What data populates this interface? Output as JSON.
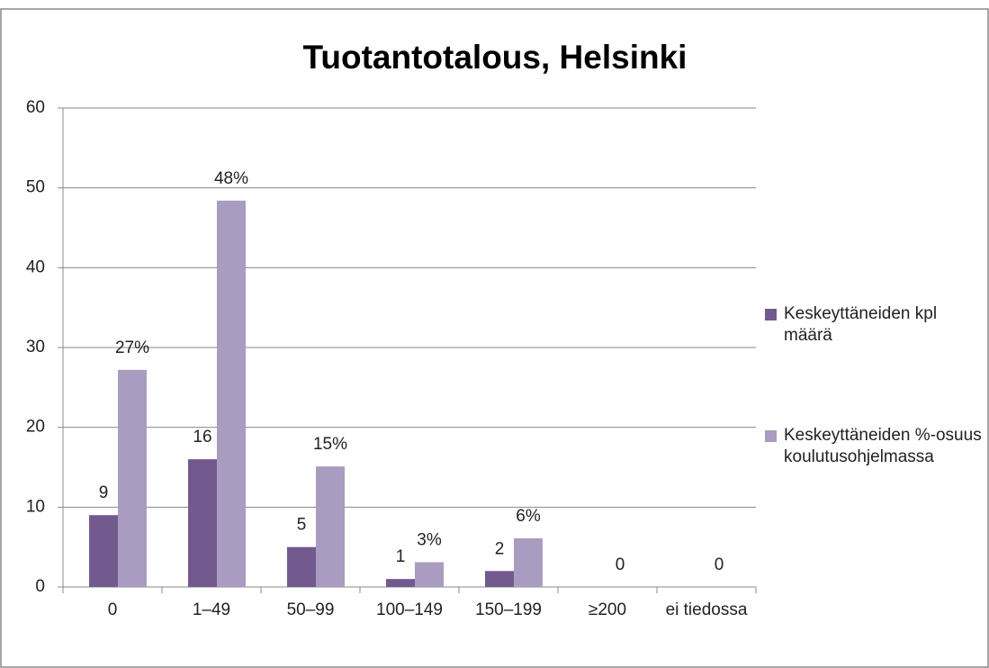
{
  "chart_data": {
    "type": "bar",
    "title": "Tuotantotalous, Helsinki",
    "categories": [
      "0",
      "1–49",
      "50–99",
      "100–149",
      "150–199",
      "≥200",
      "ei tiedossa"
    ],
    "series": [
      {
        "name": "Keskeyttäneiden kpl määrä",
        "color": "#725a8f",
        "values": [
          9,
          16,
          5,
          1,
          2,
          0,
          0
        ]
      },
      {
        "name": "Keskeyttäneiden %-osuus koulutusohjelmassa",
        "color": "#a99cc0",
        "values": [
          27.2,
          48.4,
          15.1,
          3.1,
          6.1,
          null,
          null
        ],
        "value_labels": [
          "27%",
          "48%",
          "15%",
          "3%",
          "6%",
          null,
          null
        ]
      }
    ],
    "ylim": [
      0,
      60
    ],
    "yticks": [
      0,
      10,
      20,
      30,
      40,
      50,
      60
    ],
    "grid": true
  }
}
